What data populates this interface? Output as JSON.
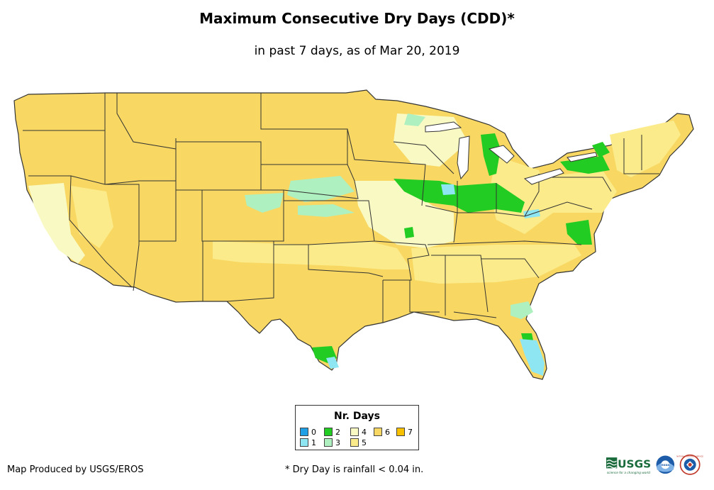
{
  "title": "Maximum Consecutive Dry Days (CDD)*",
  "subtitle": "in past 7 days, as of Mar 20, 2019",
  "legend": {
    "title": "Nr. Days",
    "items": [
      {
        "label": "0",
        "color": "#1f9fe6"
      },
      {
        "label": "1",
        "color": "#8ee6f2"
      },
      {
        "label": "2",
        "color": "#22cc22"
      },
      {
        "label": "3",
        "color": "#aef0c0"
      },
      {
        "label": "4",
        "color": "#f9f9c4"
      },
      {
        "label": "5",
        "color": "#fbeb8a"
      },
      {
        "label": "6",
        "color": "#f8d862"
      },
      {
        "label": "7",
        "color": "#f7c000"
      }
    ]
  },
  "footer": {
    "credit": "Map Produced by USGS/EROS",
    "note": "* Dry Day is rainfall < 0.04 in."
  },
  "logos": {
    "usgs": "USGS",
    "usgs_tagline": "science for a changing world",
    "noaa": "noaa",
    "nws": "NATIONAL WEATHER SERVICE"
  }
}
